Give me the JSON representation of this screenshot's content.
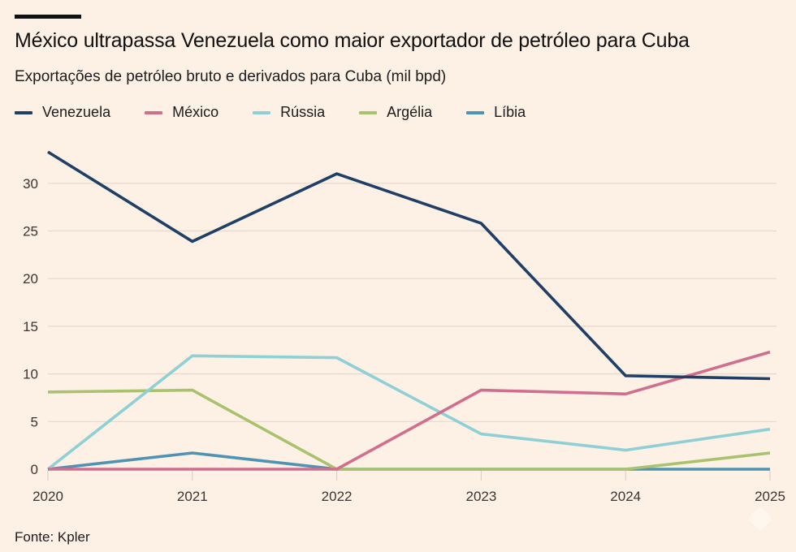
{
  "header": {
    "title": "México ultrapassa Venezuela como maior exportador de petróleo para Cuba",
    "subtitle": "Exportações de petróleo bruto e derivados para Cuba (mil bpd)"
  },
  "legend": [
    {
      "label": "Venezuela",
      "color": "#1F3F66"
    },
    {
      "label": "México",
      "color": "#D06E8E"
    },
    {
      "label": "Rússia",
      "color": "#8ED0D6"
    },
    {
      "label": "Argélia",
      "color": "#A8C26E"
    },
    {
      "label": "Líbia",
      "color": "#4E92B4"
    }
  ],
  "footer": {
    "source": "Fonte: Kpler"
  },
  "chart_data": {
    "type": "line",
    "title": "México ultrapassa Venezuela como maior exportador de petróleo para Cuba",
    "subtitle": "Exportações de petróleo bruto e derivados para Cuba (mil bpd)",
    "xlabel": "",
    "ylabel": "mil bpd",
    "x": [
      "2020",
      "2021",
      "2022",
      "2023",
      "2024",
      "2025"
    ],
    "ylim": [
      0,
      33.5
    ],
    "yticks": [
      0,
      5,
      10,
      15,
      20,
      25,
      30
    ],
    "grid": true,
    "legend_position": "top-left",
    "series": [
      {
        "name": "Venezuela",
        "color": "#1F3F66",
        "values": [
          33.3,
          23.9,
          31.0,
          25.8,
          9.8,
          9.5
        ]
      },
      {
        "name": "México",
        "color": "#D06E8E",
        "values": [
          0,
          0,
          0,
          8.3,
          7.9,
          12.3
        ]
      },
      {
        "name": "Rússia",
        "color": "#8ED0D6",
        "values": [
          0,
          11.9,
          11.7,
          3.7,
          2.0,
          4.2
        ]
      },
      {
        "name": "Argélia",
        "color": "#A8C26E",
        "values": [
          8.1,
          8.3,
          0,
          0,
          0,
          1.7
        ]
      },
      {
        "name": "Líbia",
        "color": "#4E92B4",
        "values": [
          0,
          1.7,
          0,
          0,
          0,
          0
        ]
      }
    ],
    "source": "Fonte: Kpler"
  }
}
